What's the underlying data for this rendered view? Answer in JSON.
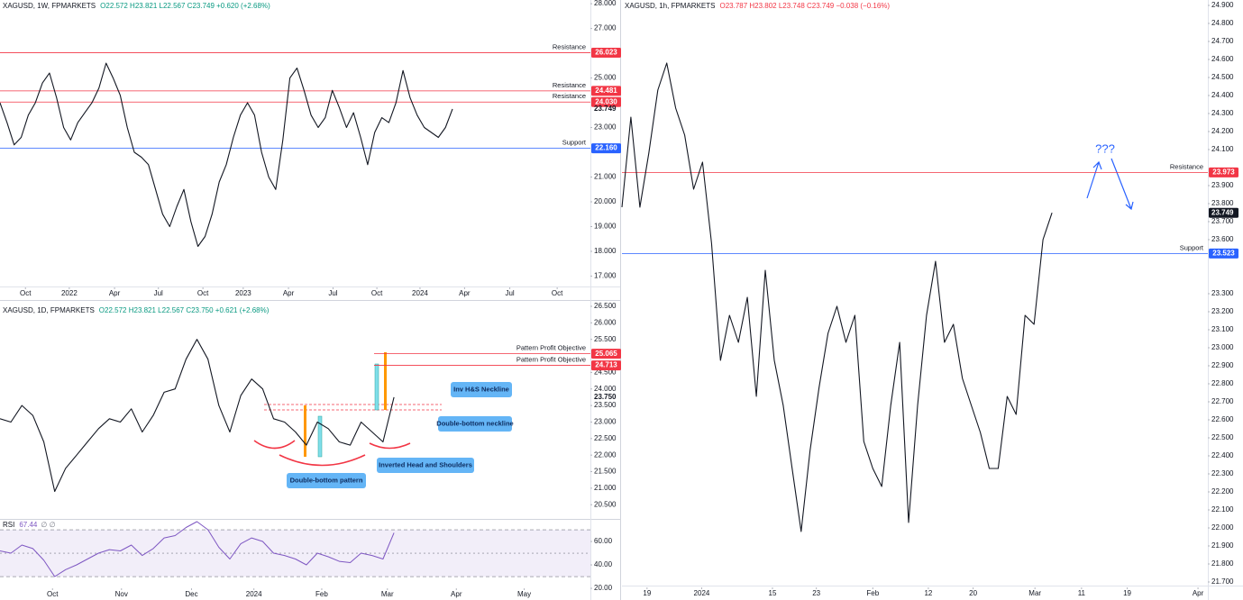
{
  "chart_data": [
    {
      "type": "line",
      "title": "XAGUSD, 1W, FPMARKETS",
      "ohlc": "O22.572 H23.821 L22.567 C23.749 +0.620 (+2.68%)",
      "header_color": "#089981",
      "color": "#131722",
      "values": [
        24.0,
        23.2,
        22.3,
        22.6,
        23.5,
        24.0,
        24.8,
        25.2,
        24.2,
        23.0,
        22.5,
        23.2,
        23.6,
        24.0,
        24.6,
        25.6,
        25.0,
        24.3,
        23.0,
        22.0,
        21.8,
        21.5,
        20.5,
        19.5,
        19.0,
        19.8,
        20.5,
        19.2,
        18.2,
        18.6,
        19.5,
        20.8,
        21.5,
        22.6,
        23.5,
        24.0,
        23.5,
        22.0,
        21.0,
        20.5,
        22.5,
        25.0,
        25.4,
        24.5,
        23.5,
        23.0,
        23.4,
        24.5,
        23.8,
        23.0,
        23.6,
        22.6,
        21.5,
        22.8,
        23.4,
        23.2,
        24.0,
        25.3,
        24.2,
        23.5,
        23.0,
        22.8,
        22.6,
        23.0,
        23.749
      ],
      "xlim": [
        0,
        83.5
      ],
      "xticks": [
        {
          "value": 3.6,
          "label": "Oct"
        },
        {
          "value": 9.8,
          "label": "2022"
        },
        {
          "value": 16.2,
          "label": "Apr"
        },
        {
          "value": 22.4,
          "label": "Jul"
        },
        {
          "value": 28.7,
          "label": "Oct"
        },
        {
          "value": 34.4,
          "label": "2023"
        },
        {
          "value": 40.8,
          "label": "Apr"
        },
        {
          "value": 47.1,
          "label": "Jul"
        },
        {
          "value": 53.3,
          "label": "Oct"
        },
        {
          "value": 59.4,
          "label": "2024"
        },
        {
          "value": 65.7,
          "label": "Apr"
        },
        {
          "value": 72.1,
          "label": "Jul"
        },
        {
          "value": 78.8,
          "label": "Oct"
        }
      ],
      "ylim": [
        16.58,
        28.15
      ],
      "yticks": [
        {
          "value": 28,
          "label": "28.000"
        },
        {
          "value": 27,
          "label": "27.000"
        },
        {
          "value": 25,
          "label": "25.000"
        },
        {
          "value": 23,
          "label": "23.000"
        },
        {
          "value": 21,
          "label": "21.000"
        },
        {
          "value": 20,
          "label": "20.000"
        },
        {
          "value": 19,
          "label": "19.000"
        },
        {
          "value": 18,
          "label": "18.000"
        },
        {
          "value": 17,
          "label": "17.000"
        }
      ],
      "levels": [
        {
          "label": "Resistance",
          "value": 26.023,
          "price_label": "26.023",
          "color": "#f23645"
        },
        {
          "label": "Resistance",
          "value": 24.481,
          "price_label": "24.481",
          "color": "#f23645"
        },
        {
          "label": "Resistance",
          "value": 24.03,
          "price_label": "24.030",
          "color": "#f23645"
        },
        {
          "label": "Support",
          "value": 22.16,
          "price_label": "22.160",
          "color": "#2962ff"
        }
      ],
      "last": {
        "value": 23.749,
        "price_label": "23.749"
      }
    },
    {
      "type": "line",
      "title": "XAGUSD, 1D, FPMARKETS",
      "ohlc": "O22.572 H23.821 L22.567 C23.750 +0.621 (+2.68%)",
      "header_color": "#089981",
      "color": "#131722",
      "values": [
        23.1,
        23.0,
        23.5,
        23.2,
        22.4,
        20.9,
        21.6,
        22.0,
        22.4,
        22.8,
        23.1,
        23.0,
        23.4,
        22.7,
        23.2,
        23.9,
        24.0,
        24.9,
        25.5,
        24.9,
        23.5,
        22.7,
        23.8,
        24.3,
        24.0,
        23.1,
        23.0,
        22.7,
        22.3,
        23.0,
        22.8,
        22.4,
        22.3,
        23.0,
        22.7,
        22.4,
        23.75
      ],
      "xlim": [
        0,
        53.95
      ],
      "xticks": [
        {
          "value": 4.8,
          "label": "Oct"
        },
        {
          "value": 11.1,
          "label": "Nov"
        },
        {
          "value": 17.5,
          "label": "Dec"
        },
        {
          "value": 23.2,
          "label": "2024"
        },
        {
          "value": 29.4,
          "label": "Feb"
        },
        {
          "value": 35.4,
          "label": "Mar"
        },
        {
          "value": 41.7,
          "label": "Apr"
        },
        {
          "value": 47.9,
          "label": "May"
        }
      ],
      "ylim": [
        20.097,
        26.636
      ],
      "yticks": [
        {
          "value": 26.5,
          "label": "26.500"
        },
        {
          "value": 26,
          "label": "26.000"
        },
        {
          "value": 25.5,
          "label": "25.500"
        },
        {
          "value": 24.5,
          "label": "24.500"
        },
        {
          "value": 24,
          "label": "24.000"
        },
        {
          "value": 23.5,
          "label": "23.500"
        },
        {
          "value": 23,
          "label": "23.000"
        },
        {
          "value": 22.5,
          "label": "22.500"
        },
        {
          "value": 22,
          "label": "22.000"
        },
        {
          "value": 21.5,
          "label": "21.500"
        },
        {
          "value": 21,
          "label": "21.000"
        },
        {
          "value": 20.5,
          "label": "20.500"
        }
      ],
      "levels": [
        {
          "label": "Pattern Profit Objective",
          "value": 25.065,
          "price_label": "25.065",
          "color": "#f23645"
        },
        {
          "label": "Pattern Profit Objective",
          "value": 24.713,
          "price_label": "24.713",
          "color": "#f23645"
        }
      ],
      "last": {
        "value": 23.75,
        "price_label": "23.750"
      },
      "annotations": [
        "Inv H&S Neckline",
        "Double-bottom neckline",
        "Inverted Head and Shoulders",
        "Double-bottom pattern"
      ]
    },
    {
      "type": "line",
      "title": "RSI",
      "last_value": 67.44,
      "params": "∅ ∅",
      "color": "#7e57c2",
      "values": [
        52,
        50,
        57,
        54,
        44,
        30,
        36,
        40,
        45,
        50,
        53,
        52,
        57,
        48,
        54,
        63,
        65,
        72,
        77,
        70,
        55,
        45,
        58,
        63,
        60,
        50,
        48,
        45,
        40,
        50,
        47,
        43,
        42,
        50,
        48,
        45,
        67.44
      ],
      "xlim": [
        0,
        53.95
      ],
      "ylim": [
        18.5,
        78.5
      ],
      "band": [
        30,
        70
      ],
      "midline": 50,
      "yticks": [
        {
          "value": 60,
          "label": "60.00"
        },
        {
          "value": 40,
          "label": "40.00"
        },
        {
          "value": 20,
          "label": "20.00"
        }
      ]
    },
    {
      "type": "line",
      "title": "XAGUSD, 1h, FPMARKETS",
      "ohlc": "O23.787 H23.802 L23.748 C23.749 −0.038 (−0.16%)",
      "header_color": "#f23645",
      "color": "#131722",
      "values": [
        23.78,
        24.28,
        23.78,
        24.08,
        24.43,
        24.58,
        24.33,
        24.18,
        23.88,
        24.03,
        23.58,
        22.93,
        23.18,
        23.03,
        23.28,
        22.73,
        23.43,
        22.93,
        22.68,
        22.33,
        21.98,
        22.43,
        22.78,
        23.08,
        23.23,
        23.03,
        23.18,
        22.48,
        22.33,
        22.23,
        22.68,
        23.03,
        22.03,
        22.68,
        23.18,
        23.48,
        23.03,
        23.13,
        22.83,
        22.68,
        22.53,
        22.33,
        22.33,
        22.73,
        22.63,
        23.18,
        23.13,
        23.6,
        23.749
      ],
      "xlim": [
        0,
        65.4
      ],
      "xticks": [
        {
          "value": 2.8,
          "label": "19"
        },
        {
          "value": 8.9,
          "label": "2024"
        },
        {
          "value": 16.8,
          "label": "15"
        },
        {
          "value": 21.7,
          "label": "23"
        },
        {
          "value": 28.0,
          "label": "Feb"
        },
        {
          "value": 34.2,
          "label": "12"
        },
        {
          "value": 39.2,
          "label": "20"
        },
        {
          "value": 46.1,
          "label": "Mar"
        },
        {
          "value": 51.3,
          "label": "11"
        },
        {
          "value": 56.4,
          "label": "19"
        },
        {
          "value": 64.3,
          "label": "Apr"
        }
      ],
      "ylim": [
        21.68,
        24.93
      ],
      "yticks": [
        {
          "value": 24.9,
          "label": "24.900"
        },
        {
          "value": 24.8,
          "label": "24.800"
        },
        {
          "value": 24.7,
          "label": "24.700"
        },
        {
          "value": 24.6,
          "label": "24.600"
        },
        {
          "value": 24.5,
          "label": "24.500"
        },
        {
          "value": 24.4,
          "label": "24.400"
        },
        {
          "value": 24.3,
          "label": "24.300"
        },
        {
          "value": 24.2,
          "label": "24.200"
        },
        {
          "value": 24.1,
          "label": "24.100"
        },
        {
          "value": 23.9,
          "label": "23.900"
        },
        {
          "value": 23.8,
          "label": "23.800"
        },
        {
          "value": 23.7,
          "label": "23.700"
        },
        {
          "value": 23.6,
          "label": "23.600"
        },
        {
          "value": 23.3,
          "label": "23.300"
        },
        {
          "value": 23.2,
          "label": "23.200"
        },
        {
          "value": 23.1,
          "label": "23.100"
        },
        {
          "value": 23,
          "label": "23.000"
        },
        {
          "value": 22.9,
          "label": "22.900"
        },
        {
          "value": 22.8,
          "label": "22.800"
        },
        {
          "value": 22.7,
          "label": "22.700"
        },
        {
          "value": 22.6,
          "label": "22.600"
        },
        {
          "value": 22.5,
          "label": "22.500"
        },
        {
          "value": 22.4,
          "label": "22.400"
        },
        {
          "value": 22.3,
          "label": "22.300"
        },
        {
          "value": 22.2,
          "label": "22.200"
        },
        {
          "value": 22.1,
          "label": "22.100"
        },
        {
          "value": 22,
          "label": "22.000"
        },
        {
          "value": 21.9,
          "label": "21.900"
        },
        {
          "value": 21.8,
          "label": "21.800"
        },
        {
          "value": 21.7,
          "label": "21.700"
        }
      ],
      "levels": [
        {
          "label": "Resistance",
          "value": 23.973,
          "price_label": "23.973",
          "color": "#f23645"
        },
        {
          "label": "Support",
          "value": 23.523,
          "price_label": "23.523",
          "color": "#2962ff"
        }
      ],
      "last": {
        "value": 23.749,
        "price_label": "23.749",
        "tag_color": "#131722"
      },
      "annotation": "???"
    }
  ]
}
